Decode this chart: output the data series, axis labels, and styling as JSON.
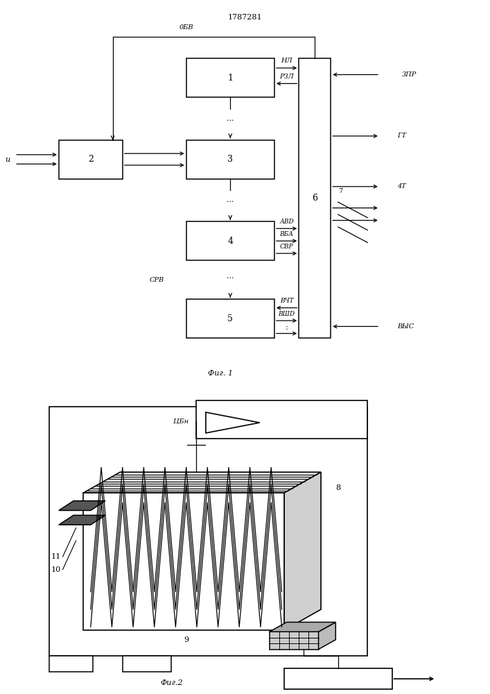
{
  "title": "1787281",
  "fig1_label": "Фиг. 1",
  "fig2_label": "Фиг.2",
  "bg_color": "#ffffff",
  "line_color": "#000000",
  "labels": {
    "u": "u",
    "obb": "0БВ",
    "nl": "НЛ",
    "rzl": "РЗЛ",
    "zpr": "3ПР",
    "gt": "ГТ",
    "cht": "4Т",
    "avd": "АВD",
    "vba": "ВБА",
    "svr": "СВР",
    "srb": "СРВ",
    "vcht": "ВЧТ",
    "vshd": "ВШD",
    "vyc": "ВЫС",
    "block1": "1",
    "block2": "2",
    "block3": "3",
    "block4": "4",
    "block5": "5",
    "block6": "6",
    "block7": "7",
    "block8": "8",
    "block9": "9",
    "block10": "10",
    "block11": "11",
    "ubn": "ЦБн"
  }
}
